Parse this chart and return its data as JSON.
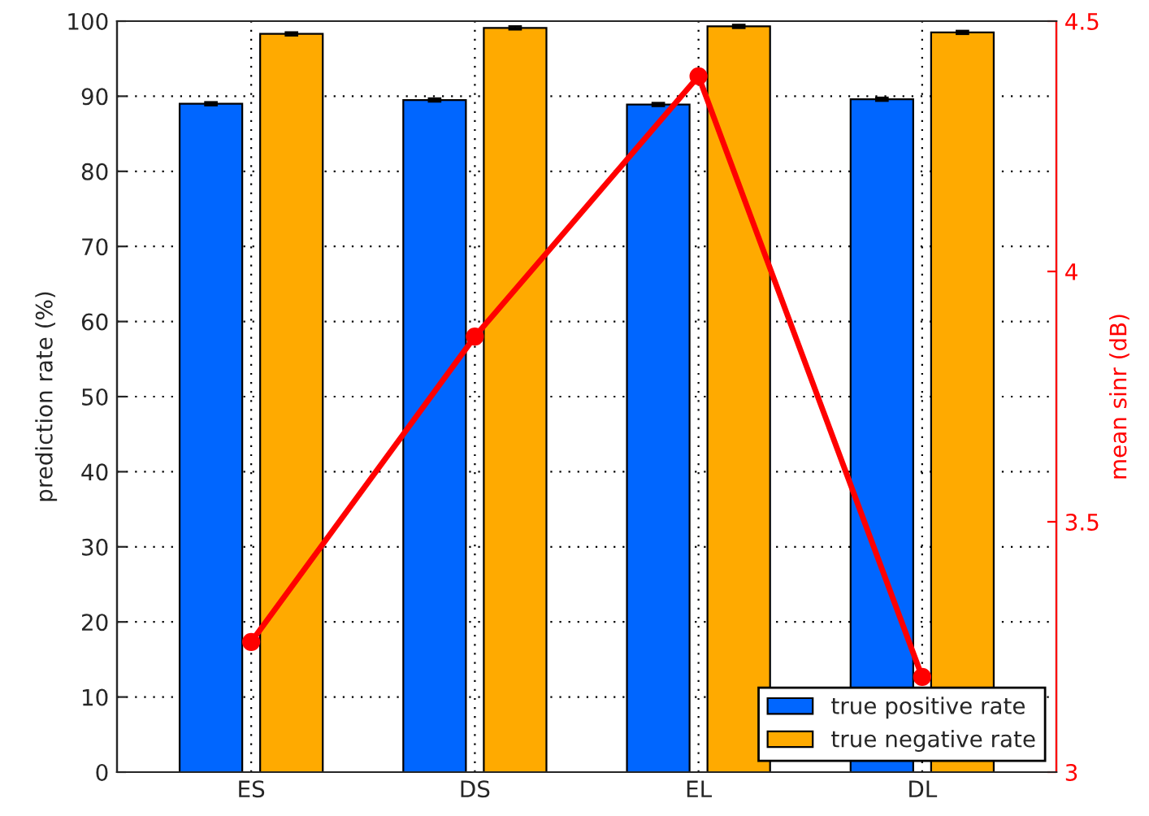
{
  "chart_data": {
    "type": "bar",
    "categories": [
      "ES",
      "DS",
      "EL",
      "DL"
    ],
    "ylabel": "prediction rate (%)",
    "y2label": "mean sinr (dB)",
    "series": [
      {
        "name": "true positive rate",
        "color": "#0066ff",
        "values": [
          89.0,
          89.5,
          88.9,
          89.6
        ],
        "errors": [
          0.2,
          0.2,
          0.2,
          0.2
        ]
      },
      {
        "name": "true negative rate",
        "color": "#ffaa00",
        "values": [
          98.3,
          99.1,
          99.3,
          98.5
        ],
        "errors": [
          0.2,
          0.2,
          0.2,
          0.2
        ]
      },
      {
        "type": "line",
        "axis": "y2",
        "color": "#ff0000",
        "values": [
          3.26,
          3.87,
          4.39,
          3.19
        ],
        "marker": "circle",
        "line_style": "solid"
      }
    ],
    "ylim": [
      0,
      100
    ],
    "yticks": [
      0,
      10,
      20,
      30,
      40,
      50,
      60,
      70,
      80,
      90,
      100
    ],
    "y2lim": [
      3,
      4.5
    ],
    "y2ticks": [
      3,
      3.5,
      4,
      4.5
    ],
    "grid": true,
    "legend": "bottom right"
  }
}
